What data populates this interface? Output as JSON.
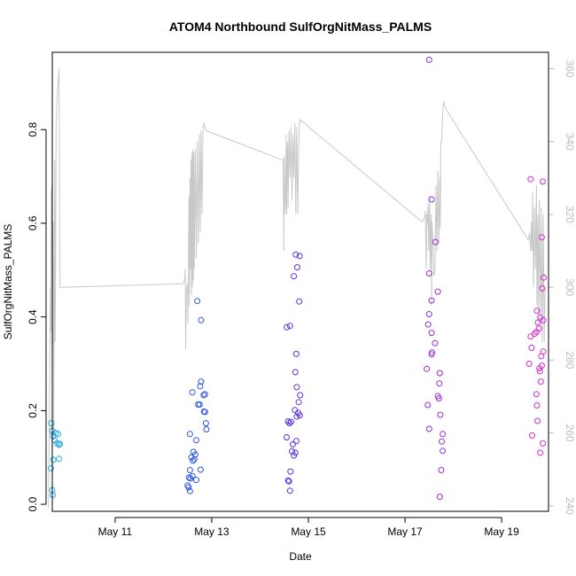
{
  "chart_data": {
    "type": "scatter",
    "title": "ATOM4 Northbound SulfOrgNitMass_PALMS",
    "xlabel": "Date",
    "ylabel": "SulfOrgNitMass_PALMS",
    "xlim": [
      9.7,
      19.97
    ],
    "ylim": [
      -0.015,
      0.965
    ],
    "y_ticks": [
      "0.0",
      "0.2",
      "0.4",
      "0.6",
      "0.8"
    ],
    "y_tick_values": [
      0,
      0.2,
      0.4,
      0.6,
      0.8
    ],
    "x_ticks": [
      "May 11",
      "May 13",
      "May 15",
      "May 17",
      "May 19"
    ],
    "x_tick_values": [
      11,
      13,
      15,
      17,
      19
    ],
    "y2_ticks": [
      "240",
      "260",
      "280",
      "300",
      "320",
      "340",
      "360"
    ],
    "y2_tick_values": [
      240,
      260,
      280,
      300,
      320,
      340,
      360
    ],
    "y2lim": [
      238.5,
      364.5
    ],
    "grid": false,
    "colors": {
      "line": "#c8c8c8",
      "right_axis": "#bdbdbd",
      "frame": "#000000"
    },
    "series": [
      {
        "color": "#1fa8e6",
        "points": [
          [
            9.68,
            0.173
          ],
          [
            9.7,
            0.157
          ],
          [
            9.72,
            0.145
          ],
          [
            9.75,
            0.137
          ],
          [
            9.77,
            0.152
          ],
          [
            9.8,
            0.13
          ],
          [
            9.82,
            0.15
          ],
          [
            9.84,
            0.127
          ],
          [
            9.86,
            0.129
          ],
          [
            9.72,
            0.095
          ],
          [
            9.84,
            0.097
          ],
          [
            9.67,
            0.077
          ],
          [
            9.7,
            0.03
          ],
          [
            9.71,
            0.02
          ]
        ]
      },
      {
        "color": "#2c55e0",
        "points": [
          [
            12.6,
            0.239
          ],
          [
            12.7,
            0.434
          ],
          [
            12.78,
            0.393
          ],
          [
            12.76,
            0.252
          ],
          [
            12.78,
            0.262
          ],
          [
            12.83,
            0.233
          ],
          [
            12.86,
            0.235
          ],
          [
            12.84,
            0.198
          ],
          [
            12.86,
            0.197
          ],
          [
            12.88,
            0.173
          ],
          [
            12.89,
            0.16
          ],
          [
            12.72,
            0.213
          ],
          [
            12.75,
            0.213
          ],
          [
            12.55,
            0.15
          ],
          [
            12.68,
            0.137
          ],
          [
            12.62,
            0.112
          ],
          [
            12.66,
            0.106
          ],
          [
            12.58,
            0.1
          ],
          [
            12.64,
            0.096
          ],
          [
            12.61,
            0.093
          ],
          [
            12.55,
            0.073
          ],
          [
            12.77,
            0.074
          ],
          [
            12.53,
            0.057
          ],
          [
            12.56,
            0.055
          ],
          [
            12.6,
            0.06
          ],
          [
            12.68,
            0.052
          ],
          [
            12.5,
            0.04
          ],
          [
            12.52,
            0.036
          ],
          [
            12.55,
            0.028
          ]
        ]
      },
      {
        "color": "#5a2ee0",
        "points": [
          [
            14.55,
            0.378
          ],
          [
            14.62,
            0.381
          ],
          [
            14.74,
            0.533
          ],
          [
            14.82,
            0.53
          ],
          [
            14.77,
            0.506
          ],
          [
            14.7,
            0.487
          ],
          [
            14.81,
            0.433
          ],
          [
            14.75,
            0.321
          ],
          [
            14.73,
            0.282
          ],
          [
            14.76,
            0.25
          ],
          [
            14.83,
            0.233
          ],
          [
            14.8,
            0.218
          ],
          [
            14.72,
            0.201
          ],
          [
            14.79,
            0.195
          ],
          [
            14.76,
            0.187
          ],
          [
            14.82,
            0.19
          ],
          [
            14.58,
            0.177
          ],
          [
            14.61,
            0.173
          ],
          [
            14.64,
            0.176
          ],
          [
            14.55,
            0.143
          ],
          [
            14.68,
            0.128
          ],
          [
            14.75,
            0.135
          ],
          [
            14.66,
            0.113
          ],
          [
            14.7,
            0.104
          ],
          [
            14.73,
            0.11
          ],
          [
            14.63,
            0.07
          ],
          [
            14.58,
            0.051
          ],
          [
            14.6,
            0.049
          ],
          [
            14.62,
            0.029
          ]
        ]
      },
      {
        "color": "#9a2ad8",
        "points": [
          [
            17.5,
            0.949
          ],
          [
            17.55,
            0.651
          ],
          [
            17.63,
            0.56
          ],
          [
            17.5,
            0.493
          ],
          [
            17.68,
            0.454
          ],
          [
            17.55,
            0.435
          ],
          [
            17.5,
            0.406
          ],
          [
            17.48,
            0.384
          ],
          [
            17.55,
            0.366
          ],
          [
            17.62,
            0.344
          ],
          [
            17.55,
            0.32
          ],
          [
            17.56,
            0.324
          ],
          [
            17.45,
            0.289
          ],
          [
            17.72,
            0.28
          ],
          [
            17.71,
            0.258
          ],
          [
            17.68,
            0.231
          ],
          [
            17.7,
            0.226
          ],
          [
            17.47,
            0.212
          ],
          [
            17.73,
            0.191
          ],
          [
            17.5,
            0.161
          ],
          [
            17.78,
            0.15
          ],
          [
            17.76,
            0.134
          ],
          [
            17.78,
            0.114
          ],
          [
            17.75,
            0.073
          ],
          [
            17.72,
            0.016
          ]
        ]
      },
      {
        "color": "#d42ad0",
        "points": [
          [
            19.6,
            0.694
          ],
          [
            19.85,
            0.689
          ],
          [
            19.83,
            0.57
          ],
          [
            19.87,
            0.484
          ],
          [
            19.84,
            0.461
          ],
          [
            19.73,
            0.413
          ],
          [
            19.8,
            0.399
          ],
          [
            19.75,
            0.388
          ],
          [
            19.86,
            0.393
          ],
          [
            19.77,
            0.375
          ],
          [
            19.6,
            0.358
          ],
          [
            19.68,
            0.364
          ],
          [
            19.72,
            0.368
          ],
          [
            19.62,
            0.334
          ],
          [
            19.86,
            0.326
          ],
          [
            19.82,
            0.316
          ],
          [
            19.57,
            0.3
          ],
          [
            19.78,
            0.29
          ],
          [
            19.83,
            0.296
          ],
          [
            19.79,
            0.284
          ],
          [
            19.81,
            0.262
          ],
          [
            19.72,
            0.235
          ],
          [
            19.73,
            0.211
          ],
          [
            19.74,
            0.178
          ],
          [
            19.63,
            0.147
          ],
          [
            19.85,
            0.13
          ],
          [
            19.8,
            0.11
          ]
        ]
      }
    ],
    "line_series": {
      "axis": "right",
      "color": "#c8c8c8",
      "points": [
        [
          9.62,
          239.5
        ],
        [
          9.64,
          265
        ],
        [
          9.66,
          300
        ],
        [
          9.67,
          288
        ],
        [
          9.68,
          326
        ],
        [
          9.69,
          328
        ],
        [
          9.7,
          298
        ],
        [
          9.71,
          284
        ],
        [
          9.72,
          318
        ],
        [
          9.73,
          260
        ],
        [
          9.74,
          293
        ],
        [
          9.75,
          335
        ],
        [
          9.76,
          285
        ],
        [
          9.78,
          345
        ],
        [
          9.8,
          352
        ],
        [
          9.81,
          355
        ],
        [
          9.83,
          358
        ],
        [
          9.84,
          360
        ],
        [
          9.86,
          300
        ],
        [
          9.9,
          300
        ],
        [
          12.4,
          301
        ],
        [
          12.44,
          302
        ],
        [
          12.45,
          305
        ],
        [
          12.46,
          283
        ],
        [
          12.48,
          300
        ],
        [
          12.5,
          301
        ],
        [
          12.51,
          290
        ],
        [
          12.52,
          312
        ],
        [
          12.53,
          325
        ],
        [
          12.54,
          295
        ],
        [
          12.55,
          330
        ],
        [
          12.56,
          305
        ],
        [
          12.57,
          335
        ],
        [
          12.58,
          298
        ],
        [
          12.59,
          337
        ],
        [
          12.6,
          300
        ],
        [
          12.61,
          338
        ],
        [
          12.62,
          302
        ],
        [
          12.63,
          337
        ],
        [
          12.64,
          305
        ],
        [
          12.66,
          338
        ],
        [
          12.68,
          308
        ],
        [
          12.7,
          340
        ],
        [
          12.72,
          312
        ],
        [
          12.74,
          342
        ],
        [
          12.76,
          315
        ],
        [
          12.78,
          343
        ],
        [
          12.8,
          320
        ],
        [
          12.82,
          344
        ],
        [
          12.84,
          345
        ],
        [
          12.86,
          344
        ],
        [
          12.88,
          343
        ],
        [
          14.45,
          335
        ],
        [
          14.48,
          335
        ],
        [
          14.49,
          310
        ],
        [
          14.5,
          336
        ],
        [
          14.52,
          320
        ],
        [
          14.53,
          325
        ],
        [
          14.54,
          342
        ],
        [
          14.55,
          320
        ],
        [
          14.56,
          337
        ],
        [
          14.57,
          340
        ],
        [
          14.58,
          322
        ],
        [
          14.6,
          343
        ],
        [
          14.62,
          330
        ],
        [
          14.64,
          344
        ],
        [
          14.66,
          324
        ],
        [
          14.68,
          342
        ],
        [
          14.7,
          330
        ],
        [
          14.72,
          345
        ],
        [
          14.74,
          320
        ],
        [
          14.76,
          344
        ],
        [
          14.78,
          320
        ],
        [
          14.8,
          338
        ],
        [
          14.81,
          342
        ],
        [
          14.82,
          346
        ],
        [
          14.83,
          346
        ],
        [
          17.35,
          318
        ],
        [
          17.4,
          319
        ],
        [
          17.42,
          321
        ],
        [
          17.44,
          305
        ],
        [
          17.45,
          320
        ],
        [
          17.46,
          317
        ],
        [
          17.48,
          323
        ],
        [
          17.49,
          310
        ],
        [
          17.5,
          316
        ],
        [
          17.51,
          325
        ],
        [
          17.52,
          305
        ],
        [
          17.54,
          320
        ],
        [
          17.55,
          295
        ],
        [
          17.56,
          318
        ],
        [
          17.58,
          312
        ],
        [
          17.6,
          303
        ],
        [
          17.62,
          305
        ],
        [
          17.64,
          328
        ],
        [
          17.66,
          310
        ],
        [
          17.68,
          332
        ],
        [
          17.7,
          312
        ],
        [
          17.72,
          330
        ],
        [
          17.73,
          316
        ],
        [
          17.74,
          340
        ],
        [
          17.76,
          340
        ],
        [
          17.78,
          348
        ],
        [
          17.8,
          351
        ],
        [
          17.82,
          350
        ],
        [
          17.84,
          349
        ],
        [
          19.55,
          313
        ],
        [
          19.58,
          315
        ],
        [
          19.6,
          310
        ],
        [
          19.62,
          318
        ],
        [
          19.63,
          310
        ],
        [
          19.64,
          326
        ],
        [
          19.66,
          300
        ],
        [
          19.68,
          322
        ],
        [
          19.7,
          305
        ],
        [
          19.72,
          328
        ],
        [
          19.73,
          295
        ],
        [
          19.75,
          320
        ],
        [
          19.76,
          290
        ],
        [
          19.78,
          324
        ],
        [
          19.8,
          290
        ],
        [
          19.82,
          322
        ],
        [
          19.84,
          285
        ],
        [
          19.86,
          320
        ],
        [
          19.88,
          285
        ],
        [
          19.9,
          300
        ]
      ]
    }
  }
}
